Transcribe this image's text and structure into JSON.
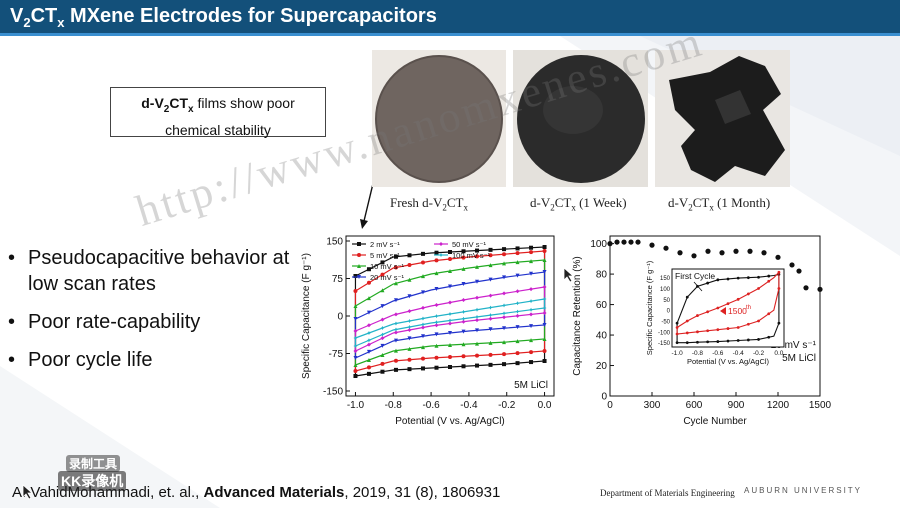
{
  "slide": {
    "title_main": "V",
    "title_sub1": "2",
    "title_mid": "CT",
    "title_sub2": "x",
    "title_rest": " MXene Electrodes for Supercapacitors",
    "callout_chem_a": "d-V",
    "callout_chem_sub1": "2",
    "callout_chem_b": "CT",
    "callout_chem_sub2": "x",
    "callout_line1_rest": " films show poor",
    "callout_line2": "chemical stability",
    "photos": [
      {
        "cap_a": "Fresh d-V",
        "cap_sub1": "2",
        "cap_b": "CT",
        "cap_sub2": "x",
        "cap_rest": ""
      },
      {
        "cap_a": "d-V",
        "cap_sub1": "2",
        "cap_b": "CT",
        "cap_sub2": "x",
        "cap_rest": " (1 Week)"
      },
      {
        "cap_a": "d-V",
        "cap_sub1": "2",
        "cap_b": "CT",
        "cap_sub2": "x",
        "cap_rest": " (1 Month)"
      }
    ],
    "bullets": [
      "Pseudocapacitive behavior at low scan rates",
      "Poor rate-capability",
      "Poor cycle life"
    ],
    "citation_authors": "A. VahidMohammadi, et. al., ",
    "citation_journal": "Advanced Materials",
    "citation_rest": ", 2019, 31 (8), 1806931",
    "department": "Department of Materials Engineering",
    "university": "AUBURN UNIVERSITY",
    "watermark_url": "http://www.nanomxenes.com",
    "watermark_logo_1": "录制工具",
    "watermark_logo_2": "KK录像机",
    "colors": {
      "title_bar": "#13507a",
      "title_accent": "#3a8fd0"
    }
  },
  "chart_data": [
    {
      "type": "line",
      "title": "",
      "xlabel": "Potential (V vs. Ag/AgCl)",
      "ylabel": "Specific Capacitance (F g⁻¹)",
      "xlim": [
        -1.05,
        0.05
      ],
      "ylim": [
        -160,
        160
      ],
      "xticks": [
        -1.0,
        -0.8,
        -0.6,
        -0.4,
        -0.2,
        0.0
      ],
      "xtick_labels": [
        "-1.0",
        "-0.8",
        "-0.6",
        "-0.4",
        "-0.2",
        "0.0"
      ],
      "yticks": [
        -150,
        -75,
        0,
        75,
        150
      ],
      "ytick_labels": [
        "-150",
        "-75",
        "0",
        "75",
        "150"
      ],
      "annotation": "5M LiCl",
      "legend_placement": "top-left",
      "legend_unit": "mV s⁻¹",
      "series": [
        {
          "name": "2 mV s⁻¹",
          "color": "#111111",
          "marker": "square",
          "x": [
            -1.0,
            -0.8,
            -0.6,
            -0.4,
            -0.2,
            0.0
          ],
          "upper": [
            80,
            118,
            126,
            130,
            134,
            138
          ],
          "lower": [
            -120,
            -108,
            -104,
            -100,
            -96,
            -90
          ]
        },
        {
          "name": "5 mV s⁻¹",
          "color": "#e02020",
          "marker": "circle",
          "x": [
            -1.0,
            -0.8,
            -0.6,
            -0.4,
            -0.2,
            0.0
          ],
          "upper": [
            50,
            96,
            110,
            118,
            124,
            130
          ],
          "lower": [
            -110,
            -90,
            -84,
            -80,
            -76,
            -70
          ]
        },
        {
          "name": "10 mV s⁻¹",
          "color": "#22aa22",
          "marker": "triangle",
          "x": [
            -1.0,
            -0.8,
            -0.6,
            -0.4,
            -0.2,
            0.0
          ],
          "upper": [
            20,
            64,
            84,
            96,
            106,
            112
          ],
          "lower": [
            -98,
            -70,
            -60,
            -56,
            -52,
            -46
          ]
        },
        {
          "name": "20 mV s⁻¹",
          "color": "#2233cc",
          "marker": "triangle-down",
          "x": [
            -1.0,
            -0.8,
            -0.6,
            -0.4,
            -0.2,
            0.0
          ],
          "upper": [
            -6,
            30,
            52,
            66,
            78,
            88
          ],
          "lower": [
            -84,
            -50,
            -38,
            -30,
            -24,
            -18
          ]
        },
        {
          "name": "50 mV s⁻¹",
          "color": "#cc22cc",
          "marker": "diamond",
          "x": [
            -1.0,
            -0.8,
            -0.6,
            -0.4,
            -0.2,
            0.0
          ],
          "upper": [
            -30,
            2,
            20,
            34,
            46,
            58
          ],
          "lower": [
            -70,
            -34,
            -20,
            -10,
            -2,
            6
          ]
        },
        {
          "name": "100 mV s⁻¹",
          "color": "#22b3c8",
          "marker": "star",
          "x": [
            -1.0,
            -0.8,
            -0.6,
            -0.4,
            -0.2,
            0.0
          ],
          "upper": [
            -44,
            -16,
            -2,
            10,
            22,
            34
          ],
          "lower": [
            -60,
            -28,
            -14,
            -4,
            6,
            16
          ]
        }
      ]
    },
    {
      "type": "scatter",
      "title": "",
      "xlabel": "Cycle Number",
      "ylabel": "Capacitance Retention (%)",
      "xlim": [
        0,
        1500
      ],
      "ylim": [
        0,
        105
      ],
      "xticks": [
        0,
        300,
        600,
        900,
        1200,
        1500
      ],
      "xtick_labels": [
        "0",
        "300",
        "600",
        "900",
        "1200",
        "1500"
      ],
      "yticks": [
        0,
        20,
        40,
        60,
        80,
        100
      ],
      "ytick_labels": [
        "0",
        "20",
        "40",
        "60",
        "80",
        "100"
      ],
      "annotation_1": "20 mV s⁻¹",
      "annotation_2": "5M LiCl",
      "x": [
        0,
        50,
        100,
        150,
        200,
        300,
        400,
        500,
        600,
        700,
        800,
        900,
        1000,
        1100,
        1200,
        1300,
        1350,
        1400,
        1500
      ],
      "values": [
        100,
        101,
        101,
        101,
        101,
        99,
        97,
        94,
        92,
        95,
        94,
        95,
        95,
        94,
        91,
        86,
        82,
        71,
        70
      ],
      "inset": {
        "type": "line",
        "xlabel": "Potential (V vs. Ag/AgCl)",
        "ylabel": "Specific Capacitance (F g⁻¹)",
        "xlim": [
          -1.05,
          0.05
        ],
        "xticks": [
          -1.0,
          -0.8,
          -0.6,
          -0.4,
          -0.2,
          0.0
        ],
        "xtick_labels": [
          "-1.0",
          "-0.8",
          "-0.6",
          "-0.4",
          "-0.2",
          "0.0"
        ],
        "ylim": [
          -170,
          190
        ],
        "yticks": [
          -150,
          -100,
          -50,
          0,
          50,
          100,
          150
        ],
        "ytick_labels": [
          "-150",
          "-100",
          "-50",
          "0",
          "50",
          "100",
          "150"
        ],
        "label_first": "First Cycle",
        "label_last": "1500",
        "label_last_sup": "th",
        "series": [
          {
            "name": "First Cycle",
            "color": "#111111",
            "x": [
              -1.0,
              -0.9,
              -0.8,
              -0.6,
              -0.4,
              -0.2,
              -0.05,
              0.0
            ],
            "upper": [
              -60,
              60,
              110,
              140,
              148,
              152,
              160,
              165
            ],
            "lower": [
              -150,
              -150,
              -148,
              -145,
              -140,
              -135,
              -120,
              -60
            ]
          },
          {
            "name": "1500th",
            "color": "#dd2222",
            "x": [
              -1.0,
              -0.9,
              -0.8,
              -0.6,
              -0.4,
              -0.2,
              -0.05,
              0.0
            ],
            "upper": [
              -80,
              -50,
              -25,
              10,
              50,
              100,
              150,
              175
            ],
            "lower": [
              -110,
              -105,
              -100,
              -90,
              -80,
              -50,
              0,
              100
            ]
          }
        ]
      }
    }
  ]
}
